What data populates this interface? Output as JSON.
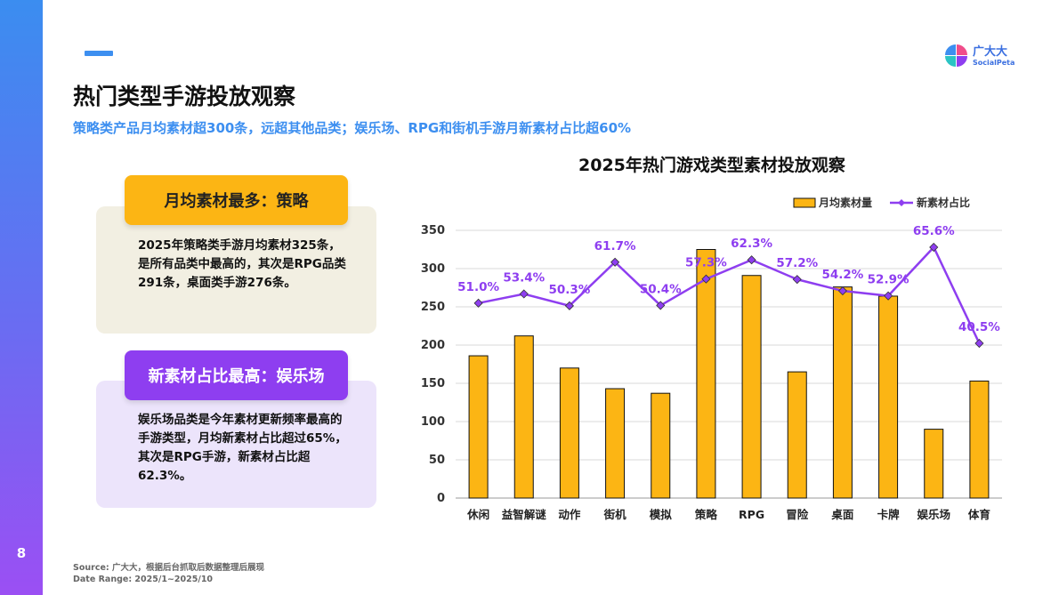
{
  "page": {
    "number": "8",
    "title": "热门类型手游投放观察",
    "subtitle": "策略类产品月均素材超300条，远超其他品类；娱乐场、RPG和街机手游月新素材占比超60%"
  },
  "brand": {
    "name_cn": "广大大",
    "name_en": "SocialPeta",
    "colors": {
      "blue": "#3d8ff0",
      "purple": "#8e3ef0",
      "orange": "#fcb514"
    }
  },
  "cards": [
    {
      "badge": "月均素材最多：策略",
      "text": "2025年策略类手游月均素材325条，是所有品类中最高的，其次是RPG品类291条，桌面类手游276条。"
    },
    {
      "badge": "新素材占比最高：娱乐场",
      "text": "娱乐场品类是今年素材更新频率最高的手游类型，月均新素材占比超过65%，其次是RPG手游，新素材占比超62.3%。"
    }
  ],
  "chart_data": {
    "type": "bar",
    "title": "2025年热门游戏类型素材投放观察",
    "categories": [
      "休闲",
      "益智解谜",
      "动作",
      "街机",
      "模拟",
      "策略",
      "RPG",
      "冒险",
      "桌面",
      "卡牌",
      "娱乐场",
      "体育"
    ],
    "series": [
      {
        "name": "月均素材量",
        "type": "bar",
        "color": "#fcb514",
        "values": [
          186,
          212,
          170,
          143,
          137,
          325,
          291,
          165,
          276,
          264,
          90,
          153
        ]
      },
      {
        "name": "新素材占比",
        "type": "line",
        "color": "#8e3ef0",
        "values": [
          51.0,
          53.4,
          50.3,
          61.7,
          50.4,
          57.3,
          62.3,
          57.2,
          54.2,
          52.9,
          65.6,
          40.5
        ],
        "labels": [
          "51.0%",
          "53.4%",
          "50.3%",
          "61.7%",
          "50.4%",
          "57.3%",
          "62.3%",
          "57.2%",
          "54.2%",
          "52.9%",
          "65.6%",
          "40.5%"
        ]
      }
    ],
    "yticks": [
      "0",
      "50",
      "100",
      "150",
      "200",
      "250",
      "300",
      "350"
    ],
    "ylim": [
      0,
      350
    ],
    "legend_position": "top-right",
    "grid": true
  },
  "footer": {
    "source": "Source:  广大大，根据后台抓取后数据整理后展现",
    "date_range": "Date Range:  2025/1~2025/10"
  }
}
